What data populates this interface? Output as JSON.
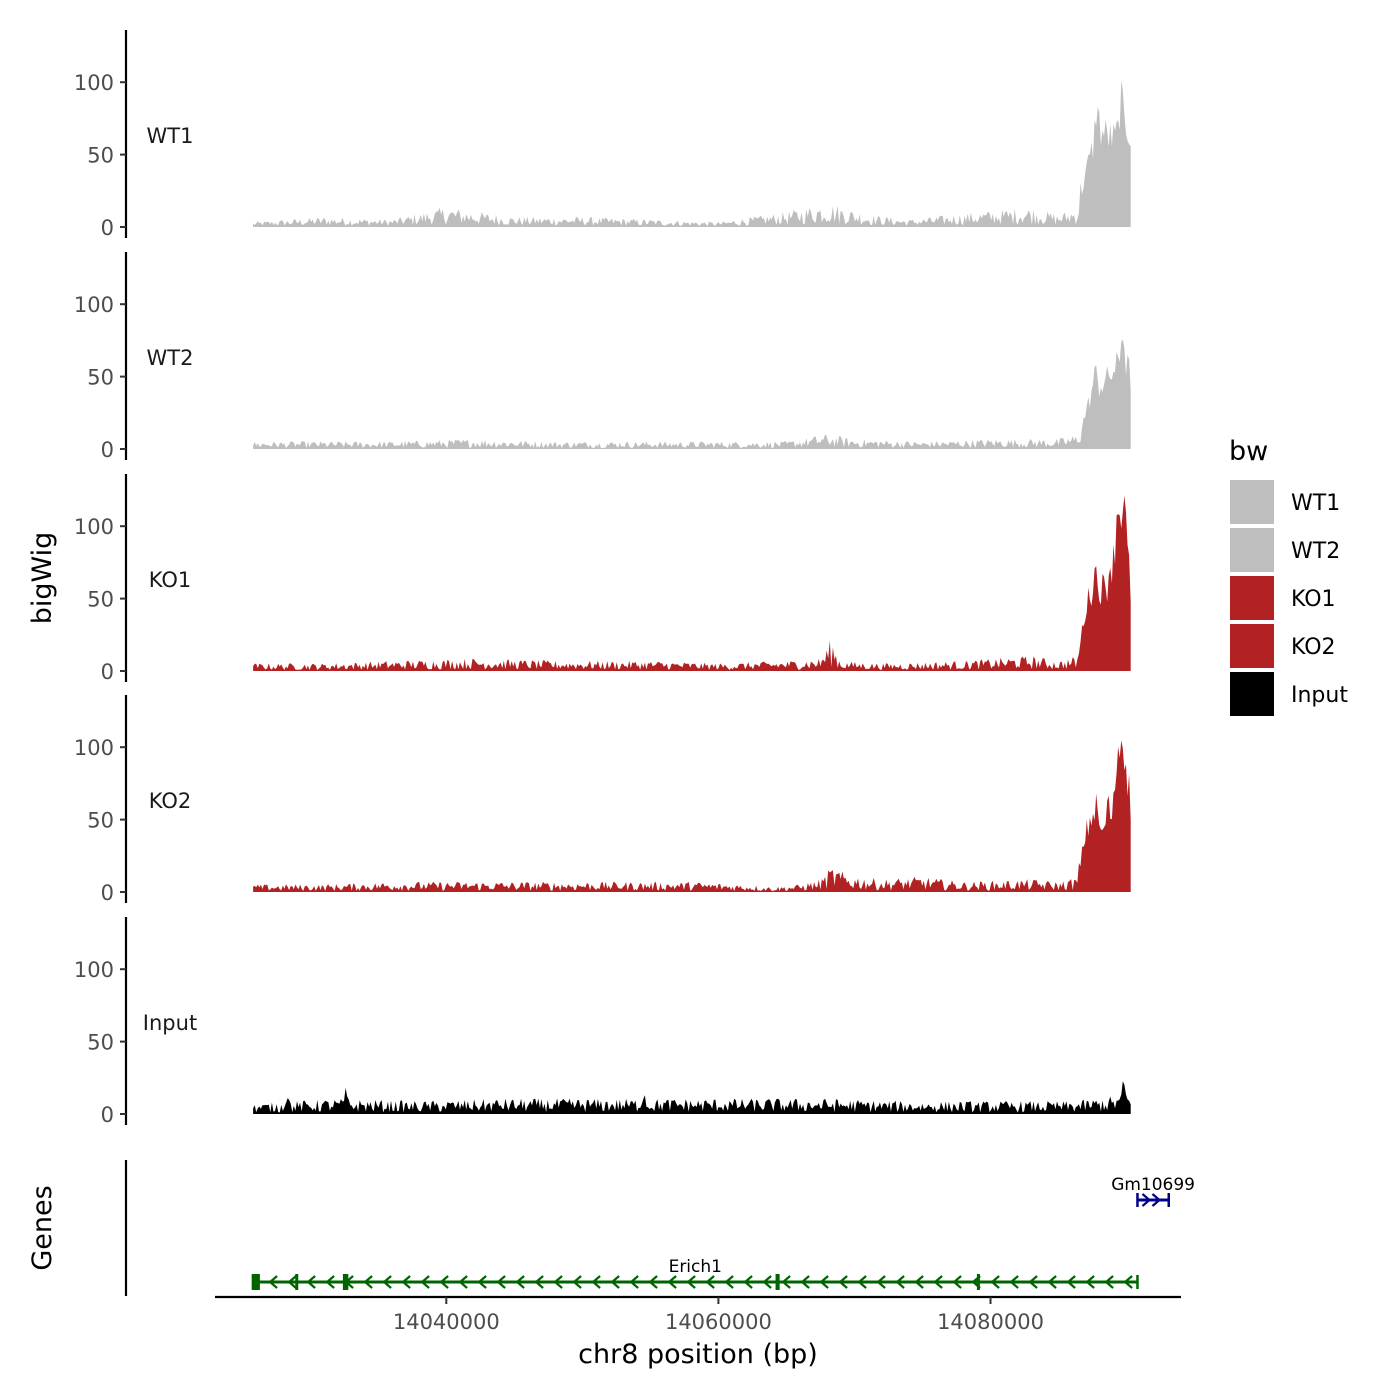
{
  "chart_data": {
    "type": "area",
    "ylabel": "bigWig",
    "xlabel": "chr8 position (bp)",
    "genes_label": "Genes",
    "ylim": [
      0,
      135
    ],
    "y_ticks": [
      0,
      50,
      100
    ],
    "x_range": [
      14023000,
      14094000
    ],
    "x_ticks": [
      14040000,
      14060000,
      14080000
    ],
    "x_tick_labels": [
      "14040000",
      "14060000",
      "14080000"
    ],
    "legend": {
      "title": "bw",
      "position": "right",
      "entries": [
        {
          "name": "WT1",
          "color": "#bebebe"
        },
        {
          "name": "WT2",
          "color": "#bebebe"
        },
        {
          "name": "KO1",
          "color": "#b22222"
        },
        {
          "name": "KO2",
          "color": "#b22222"
        },
        {
          "name": "Input",
          "color": "#000000"
        }
      ]
    },
    "signal_range": [
      14025800,
      14090300
    ],
    "series": [
      {
        "name": "WT1",
        "color": "#bebebe",
        "anchors": [
          [
            14025800,
            2
          ],
          [
            14031000,
            4
          ],
          [
            14036000,
            3
          ],
          [
            14040000,
            8
          ],
          [
            14045000,
            4
          ],
          [
            14050000,
            4
          ],
          [
            14055000,
            3
          ],
          [
            14060000,
            2
          ],
          [
            14065000,
            6
          ],
          [
            14068000,
            10
          ],
          [
            14071000,
            5
          ],
          [
            14074000,
            3
          ],
          [
            14079000,
            6
          ],
          [
            14083000,
            8
          ],
          [
            14085000,
            5
          ],
          [
            14086400,
            8
          ],
          [
            14086900,
            35
          ],
          [
            14087500,
            55
          ],
          [
            14088000,
            68
          ],
          [
            14089000,
            62
          ],
          [
            14090000,
            72
          ],
          [
            14090300,
            65
          ]
        ],
        "peaks": [
          [
            14087800,
            22
          ],
          [
            14089600,
            25
          ]
        ]
      },
      {
        "name": "WT2",
        "color": "#bebebe",
        "anchors": [
          [
            14025800,
            3
          ],
          [
            14031000,
            3
          ],
          [
            14036000,
            3
          ],
          [
            14042000,
            4
          ],
          [
            14048000,
            3
          ],
          [
            14055000,
            3
          ],
          [
            14060000,
            3
          ],
          [
            14065000,
            3
          ],
          [
            14068000,
            6
          ],
          [
            14070000,
            4
          ],
          [
            14075000,
            3
          ],
          [
            14080000,
            4
          ],
          [
            14083000,
            4
          ],
          [
            14085000,
            4
          ],
          [
            14086400,
            6
          ],
          [
            14086900,
            22
          ],
          [
            14087500,
            42
          ],
          [
            14088300,
            46
          ],
          [
            14089300,
            58
          ],
          [
            14090000,
            60
          ],
          [
            14090300,
            50
          ]
        ],
        "peaks": [
          [
            14089700,
            28
          ],
          [
            14087700,
            12
          ]
        ]
      },
      {
        "name": "KO1",
        "color": "#b22222",
        "anchors": [
          [
            14025800,
            3
          ],
          [
            14031000,
            3
          ],
          [
            14036000,
            4
          ],
          [
            14042000,
            5
          ],
          [
            14048000,
            4
          ],
          [
            14055000,
            4
          ],
          [
            14060000,
            3
          ],
          [
            14065000,
            4
          ],
          [
            14067500,
            5
          ],
          [
            14068300,
            13
          ],
          [
            14069000,
            4
          ],
          [
            14072000,
            3
          ],
          [
            14078000,
            4
          ],
          [
            14083000,
            6
          ],
          [
            14085000,
            4
          ],
          [
            14086400,
            6
          ],
          [
            14086900,
            40
          ],
          [
            14087500,
            60
          ],
          [
            14088500,
            58
          ],
          [
            14089000,
            72
          ],
          [
            14089300,
            115
          ],
          [
            14089800,
            118
          ],
          [
            14090300,
            55
          ]
        ],
        "peaks": [
          [
            14087700,
            12
          ],
          [
            14088800,
            10
          ]
        ]
      },
      {
        "name": "KO2",
        "color": "#b22222",
        "anchors": [
          [
            14025800,
            3
          ],
          [
            14031000,
            3
          ],
          [
            14036000,
            4
          ],
          [
            14042000,
            4
          ],
          [
            14048000,
            4
          ],
          [
            14054000,
            4
          ],
          [
            14058000,
            4
          ],
          [
            14062000,
            3
          ],
          [
            14064000,
            2
          ],
          [
            14066000,
            3
          ],
          [
            14067500,
            5
          ],
          [
            14068300,
            10
          ],
          [
            14069500,
            7
          ],
          [
            14072000,
            5
          ],
          [
            14075000,
            6
          ],
          [
            14078000,
            4
          ],
          [
            14083000,
            5
          ],
          [
            14085000,
            4
          ],
          [
            14086400,
            6
          ],
          [
            14086900,
            38
          ],
          [
            14087500,
            55
          ],
          [
            14088300,
            40
          ],
          [
            14089000,
            55
          ],
          [
            14089300,
            100
          ],
          [
            14089800,
            110
          ],
          [
            14090300,
            60
          ]
        ],
        "peaks": [
          [
            14087800,
            12
          ],
          [
            14088600,
            18
          ]
        ]
      },
      {
        "name": "Input",
        "color": "#000000",
        "anchors": [
          [
            14025800,
            4
          ],
          [
            14032000,
            6
          ],
          [
            14038000,
            5
          ],
          [
            14044000,
            6
          ],
          [
            14050000,
            6
          ],
          [
            14056000,
            6
          ],
          [
            14062000,
            6
          ],
          [
            14068000,
            6
          ],
          [
            14074000,
            5
          ],
          [
            14080000,
            5
          ],
          [
            14086000,
            5
          ],
          [
            14089000,
            7
          ],
          [
            14090000,
            9
          ],
          [
            14090300,
            6
          ]
        ],
        "peaks": [
          [
            14028300,
            9
          ],
          [
            14032600,
            8
          ],
          [
            14054500,
            9
          ],
          [
            14089800,
            12
          ]
        ]
      }
    ],
    "genes": [
      {
        "name": "Erich1",
        "strand": "-",
        "start": 14025800,
        "end": 14090800,
        "color": "#006400",
        "exons": [
          [
            14025700,
            14026300
          ],
          [
            14028900,
            14029100
          ],
          [
            14032400,
            14032800
          ],
          [
            14064200,
            14064500
          ],
          [
            14079000,
            14079200
          ]
        ]
      },
      {
        "name": "Gm10699",
        "strand": "+",
        "start": 14090800,
        "end": 14093100,
        "color": "#00008b",
        "exons": []
      }
    ]
  }
}
